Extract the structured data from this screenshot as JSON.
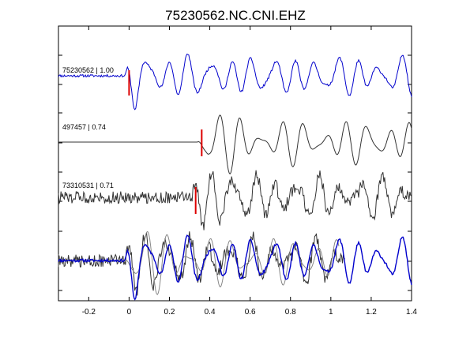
{
  "chart_data": {
    "type": "line",
    "title": "75230562.NC.CNI.EHZ",
    "xlabel": "",
    "ylabel": "",
    "xlim": [
      -0.35,
      1.4
    ],
    "x_ticks": [
      "-0.2",
      "0",
      "0.2",
      "0.4",
      "0.6",
      "0.8",
      "1",
      "1.2",
      "1.4"
    ],
    "x_tick_values": [
      -0.2,
      0,
      0.2,
      0.4,
      0.6,
      0.8,
      1.0,
      1.2,
      1.4
    ],
    "grid": false,
    "colors": {
      "master": "#0000cc",
      "other": "#333333",
      "overlay_gray": "#888888",
      "pick": "#dd0000"
    },
    "traces": [
      {
        "label": "75230562 | 1.00",
        "color": "#0000cc",
        "pick_time": 0.0,
        "noise": 0.12
      },
      {
        "label": "497457 | 0.74",
        "color": "#333333",
        "pick_time": 0.36,
        "noise": 0.0
      },
      {
        "label": "73310531 | 0.71",
        "color": "#333333",
        "pick_time": 0.33,
        "noise": 0.55
      }
    ],
    "overlay": {
      "series": [
        "75230562 | 1.00",
        "497457 | 0.74",
        "73310531 | 0.71"
      ]
    }
  }
}
